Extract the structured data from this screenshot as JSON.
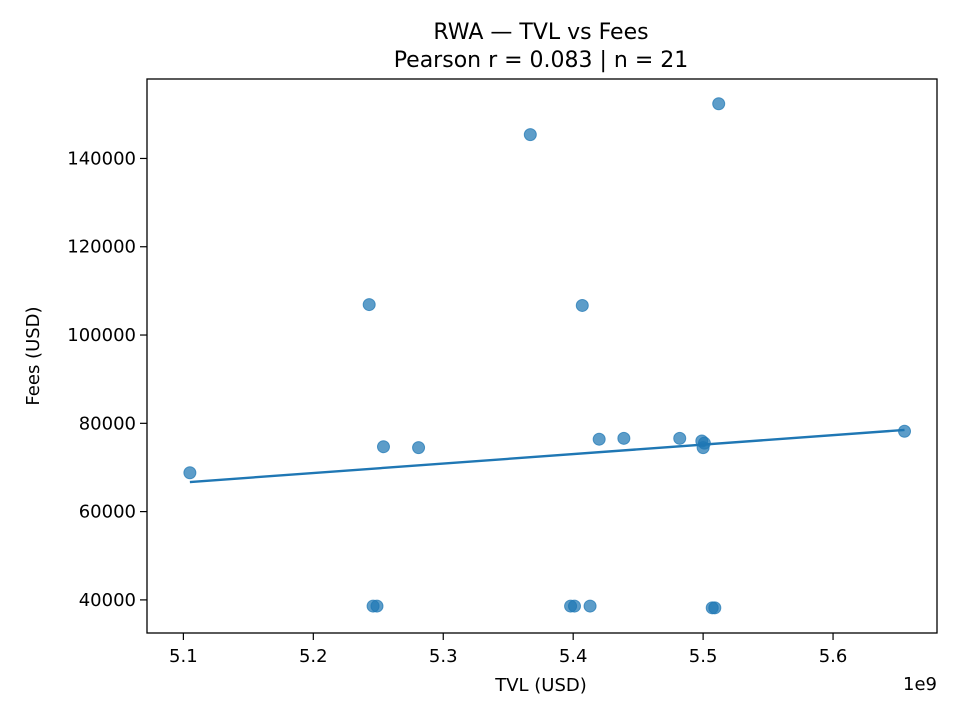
{
  "chart_data": {
    "type": "scatter",
    "title": "RWA — TVL vs Fees",
    "subtitle": "Pearson r = 0.083 | n = 21",
    "xlabel": "TVL (USD)",
    "ylabel": "Fees (USD)",
    "x_offset_label": "1e9",
    "xlim": [
      5072000000.0,
      5680000000.0
    ],
    "ylim": [
      32500,
      158000
    ],
    "x_ticks": [
      5100000000.0,
      5200000000.0,
      5300000000.0,
      5400000000.0,
      5500000000.0,
      5600000000.0
    ],
    "x_tick_labels": [
      "5.1",
      "5.2",
      "5.3",
      "5.4",
      "5.5",
      "5.6"
    ],
    "y_ticks": [
      40000,
      60000,
      80000,
      100000,
      120000,
      140000
    ],
    "y_tick_labels": [
      "40000",
      "60000",
      "80000",
      "100000",
      "120000",
      "140000"
    ],
    "grid": false,
    "color": "#1f77b4",
    "points": [
      {
        "x": 5105000000.0,
        "y": 68800
      },
      {
        "x": 5243000000.0,
        "y": 106900
      },
      {
        "x": 5246000000.0,
        "y": 38600
      },
      {
        "x": 5249000000.0,
        "y": 38600
      },
      {
        "x": 5254000000.0,
        "y": 74700
      },
      {
        "x": 5281000000.0,
        "y": 74500
      },
      {
        "x": 5367000000.0,
        "y": 145400
      },
      {
        "x": 5398000000.0,
        "y": 38600
      },
      {
        "x": 5401000000.0,
        "y": 38600
      },
      {
        "x": 5407000000.0,
        "y": 106700
      },
      {
        "x": 5413000000.0,
        "y": 38600
      },
      {
        "x": 5420000000.0,
        "y": 76400
      },
      {
        "x": 5439000000.0,
        "y": 76600
      },
      {
        "x": 5482000000.0,
        "y": 76600
      },
      {
        "x": 5499000000.0,
        "y": 76000
      },
      {
        "x": 5500000000.0,
        "y": 74500
      },
      {
        "x": 5501000000.0,
        "y": 75500
      },
      {
        "x": 5507000000.0,
        "y": 38200
      },
      {
        "x": 5509000000.0,
        "y": 38200
      },
      {
        "x": 5512000000.0,
        "y": 152400
      },
      {
        "x": 5655000000.0,
        "y": 78200
      }
    ],
    "fit_line": {
      "x": [
        5105000000.0,
        5655000000.0
      ],
      "y": [
        66700,
        78500
      ]
    }
  }
}
